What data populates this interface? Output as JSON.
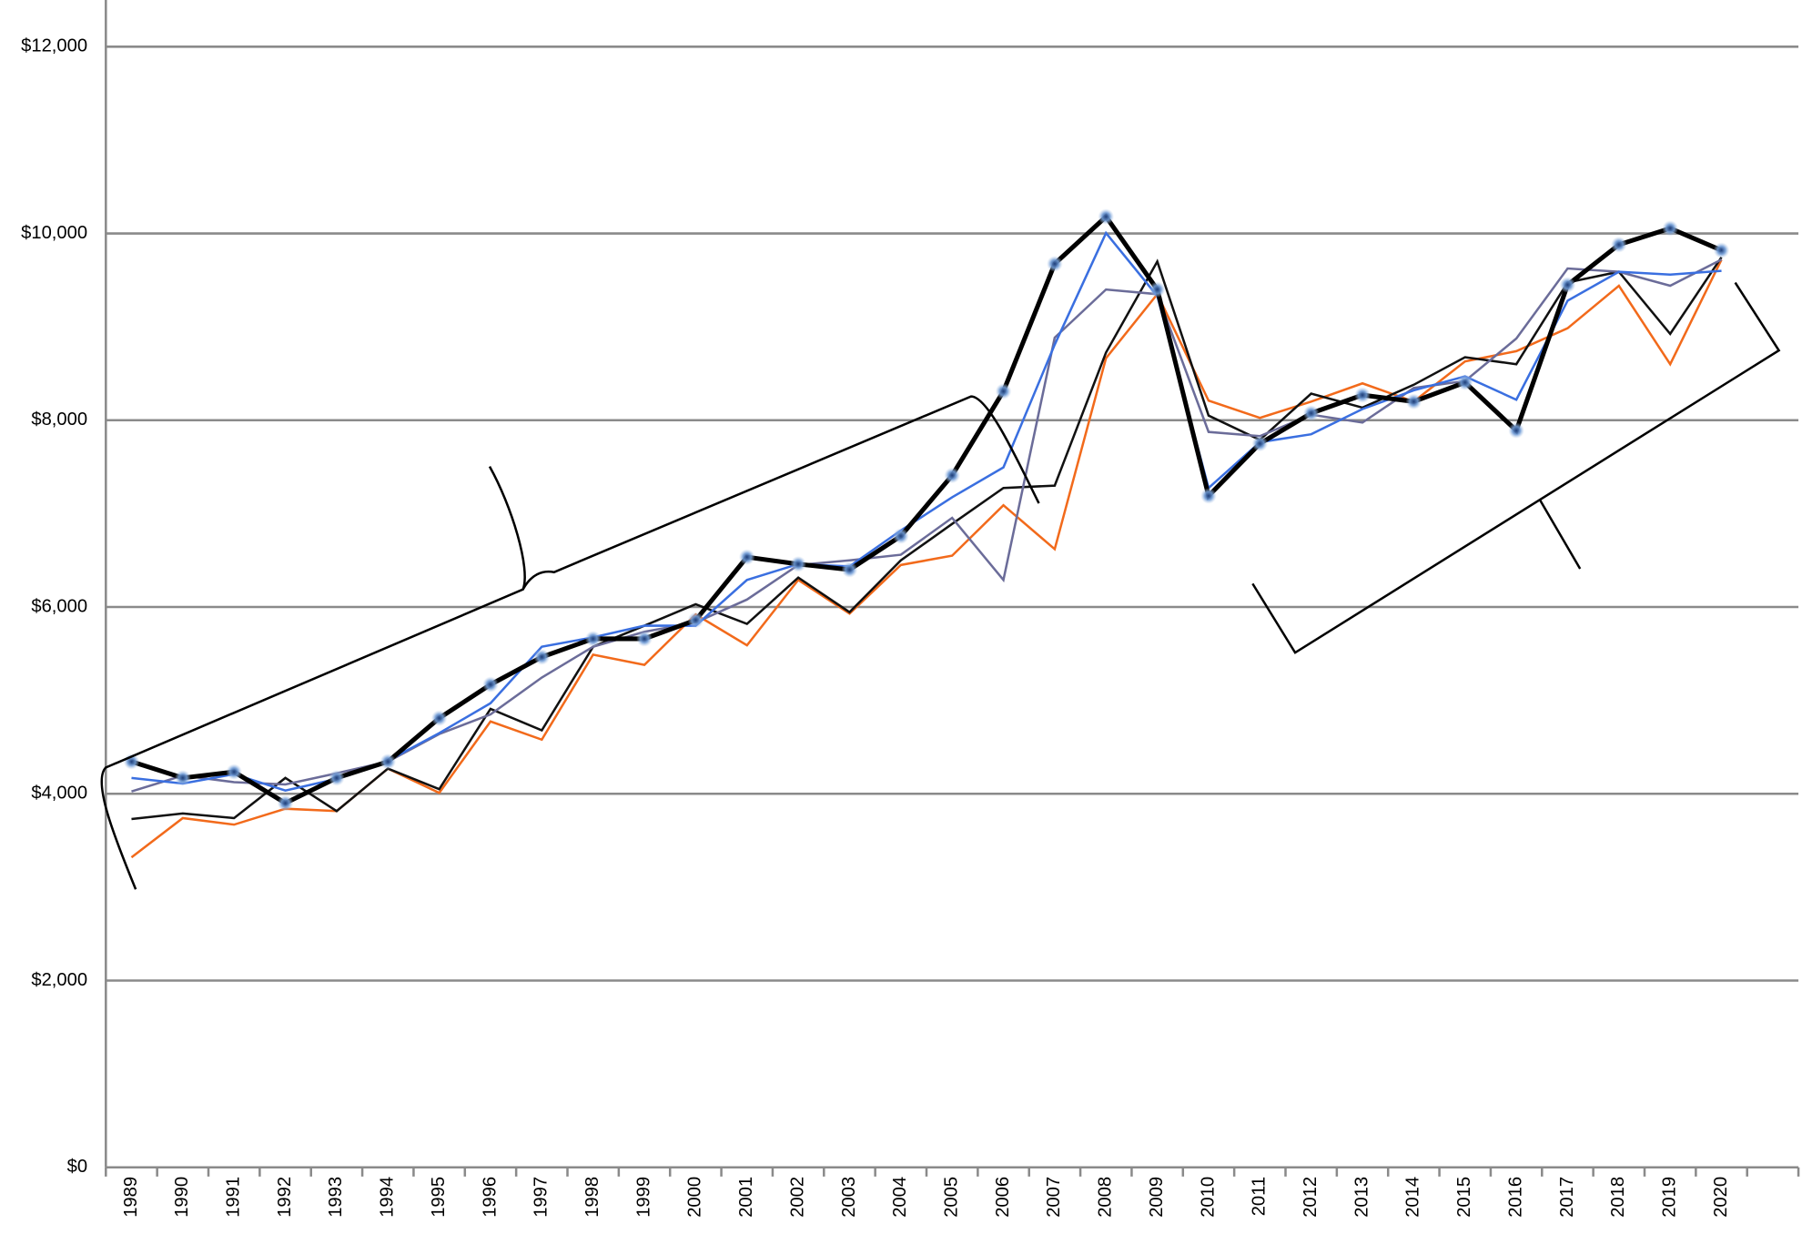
{
  "chart_data": {
    "type": "line",
    "categories": [
      "1989",
      "1990",
      "1991",
      "1992",
      "1993",
      "1994",
      "1995",
      "1996",
      "1997",
      "1998",
      "1999",
      "2000",
      "2001",
      "2002",
      "2003",
      "2004",
      "2005",
      "2006",
      "2007",
      "2008",
      "2009",
      "2010",
      "2011",
      "2012",
      "2013",
      "2014",
      "2015",
      "2016",
      "2017",
      "2018",
      "2019",
      "2020",
      null
    ],
    "ylim": [
      0,
      12500
    ],
    "yticks": [
      {
        "value": 0,
        "label": "$0"
      },
      {
        "value": 2000,
        "label": "$2,000"
      },
      {
        "value": 4000,
        "label": "$4,000"
      },
      {
        "value": 6000,
        "label": "$6,000"
      },
      {
        "value": 8000,
        "label": "$8,000"
      },
      {
        "value": 10000,
        "label": "$10,000"
      },
      {
        "value": 12000,
        "label": "$12,000"
      }
    ],
    "grid": true,
    "series": [
      {
        "color": "#f26a1b",
        "line_width": 2,
        "markers": false,
        "values": [
          3320,
          3740,
          3670,
          3840,
          3815,
          4270,
          4010,
          4775,
          4580,
          5490,
          5380,
          5920,
          5590,
          6290,
          5930,
          6450,
          6550,
          7090,
          6620,
          8665,
          9350,
          8210,
          8025,
          8200,
          8395,
          8200,
          8630,
          8740,
          8985,
          9440,
          8600,
          9720,
          null
        ]
      },
      {
        "color": "#111111",
        "line_width": 2,
        "markers": false,
        "values": [
          3730,
          3790,
          3740,
          4170,
          3815,
          4270,
          4050,
          4910,
          4680,
          5575,
          5800,
          6030,
          5820,
          6315,
          5945,
          6500,
          6890,
          7275,
          7300,
          8725,
          9700,
          8050,
          7790,
          8285,
          8135,
          8380,
          8675,
          8600,
          9475,
          9590,
          8925,
          9745,
          null
        ]
      },
      {
        "color": "#6b6c99",
        "line_width": 2,
        "markers": false,
        "values": [
          4025,
          4195,
          4125,
          4100,
          4220,
          4345,
          4640,
          4850,
          5245,
          5575,
          5735,
          5835,
          6080,
          6450,
          6500,
          6560,
          6955,
          6290,
          8885,
          9400,
          9350,
          7875,
          7830,
          8060,
          7975,
          8345,
          8420,
          8875,
          9625,
          9590,
          9440,
          9720,
          null
        ]
      },
      {
        "color": "#3a6fe0",
        "line_width": 2,
        "markers": false,
        "values": [
          4170,
          4110,
          4210,
          4035,
          4160,
          4355,
          4650,
          4970,
          5575,
          5675,
          5800,
          5800,
          6290,
          6460,
          6435,
          6820,
          7175,
          7495,
          8810,
          10005,
          9330,
          7275,
          7765,
          7850,
          8120,
          8320,
          8470,
          8220,
          9280,
          9590,
          9560,
          9600,
          null
        ]
      },
      {
        "color": "#000000",
        "line_width": 4,
        "markers": true,
        "values": [
          4345,
          4170,
          4235,
          3900,
          4170,
          4345,
          4810,
          5170,
          5465,
          5660,
          5660,
          5860,
          6535,
          6460,
          6400,
          6760,
          7410,
          8310,
          9675,
          10180,
          9400,
          7190,
          7750,
          8075,
          8270,
          8200,
          8405,
          7890,
          9450,
          9880,
          10055,
          9820,
          null
        ]
      }
    ]
  }
}
